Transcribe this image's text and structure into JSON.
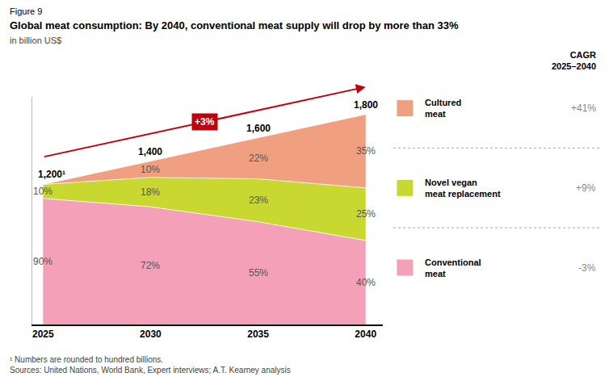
{
  "chart_data": {
    "type": "area",
    "stacked": true,
    "figure_label": "Figure 9",
    "title": "Global meat consumption: By 2040, conventional meat supply will drop by more than 33%",
    "subtitle": "in billion US$",
    "x": [
      2025,
      2030,
      2035,
      2040
    ],
    "series": [
      {
        "name": "Conventional\nmeat",
        "color": "#F4A0B8",
        "values": [
          1080,
          1008,
          880,
          720
        ],
        "share_labels": [
          "90%",
          "72%",
          "55%",
          "40%"
        ],
        "cagr_label": "-3%"
      },
      {
        "name": "Novel vegan\nmeat replacement",
        "color": "#C8D830",
        "values": [
          120,
          252,
          368,
          450
        ],
        "share_labels": [
          "10%",
          "18%",
          "23%",
          "25%"
        ],
        "cagr_label": "+9%"
      },
      {
        "name": "Cultured\nmeat",
        "color": "#F0A080",
        "values": [
          0,
          140,
          352,
          630
        ],
        "share_labels": [
          null,
          "10%",
          "22%",
          "35%"
        ],
        "cagr_label": "+41%"
      }
    ],
    "totals": [
      1200,
      1400,
      1600,
      1800
    ],
    "total_labels": [
      "1,200¹",
      "1,400",
      "1,600",
      "1,800"
    ],
    "cagr_header": "CAGR\n2025–2040",
    "annotations": [
      {
        "text": "+3%",
        "color": "#C0000C"
      }
    ],
    "footnotes": [
      "¹ Numbers are rounded to hundred billions.",
      "Sources: United Nations, World Bank, Expert interviews; A.T. Kearney analysis"
    ],
    "xlim": [
      2024.5,
      2040.8
    ],
    "xticks": [
      2025,
      2030,
      2035,
      2040
    ],
    "ylim": [
      0,
      1950
    ],
    "yticks": [],
    "grid": false,
    "tick_labels": "x"
  }
}
